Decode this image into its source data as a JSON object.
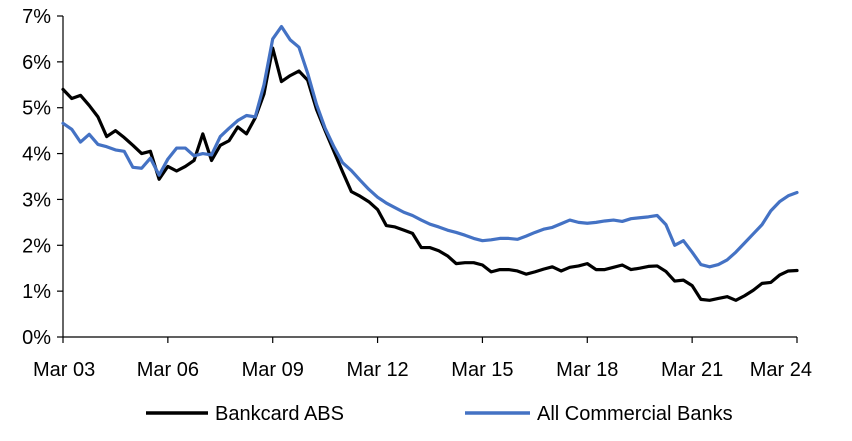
{
  "chart_data": {
    "type": "line",
    "title": "",
    "xlabel": "",
    "ylabel": "",
    "ylim": [
      0,
      7
    ],
    "xlim": [
      2003.17,
      2024.17
    ],
    "y_ticks": [
      {
        "value": 0,
        "label": "0%"
      },
      {
        "value": 1,
        "label": "1%"
      },
      {
        "value": 2,
        "label": "2%"
      },
      {
        "value": 3,
        "label": "3%"
      },
      {
        "value": 4,
        "label": "4%"
      },
      {
        "value": 5,
        "label": "5%"
      },
      {
        "value": 6,
        "label": "6%"
      },
      {
        "value": 7,
        "label": "7%"
      }
    ],
    "x_ticks": [
      {
        "value": 2003.17,
        "label": "Mar 03"
      },
      {
        "value": 2006.17,
        "label": "Mar 06"
      },
      {
        "value": 2009.17,
        "label": "Mar 09"
      },
      {
        "value": 2012.17,
        "label": "Mar 12"
      },
      {
        "value": 2015.17,
        "label": "Mar 15"
      },
      {
        "value": 2018.17,
        "label": "Mar 18"
      },
      {
        "value": 2021.17,
        "label": "Mar 21"
      },
      {
        "value": 2024.17,
        "label": "Mar 24"
      }
    ],
    "grid": false,
    "legend_position": "bottom",
    "series": [
      {
        "name": "Bankcard ABS",
        "color": "#000000",
        "points": [
          [
            2003.17,
            5.4
          ],
          [
            2003.42,
            5.2
          ],
          [
            2003.67,
            5.27
          ],
          [
            2003.92,
            5.05
          ],
          [
            2004.17,
            4.8
          ],
          [
            2004.42,
            4.37
          ],
          [
            2004.67,
            4.5
          ],
          [
            2004.92,
            4.35
          ],
          [
            2005.17,
            4.18
          ],
          [
            2005.42,
            4.0
          ],
          [
            2005.67,
            4.05
          ],
          [
            2005.92,
            3.44
          ],
          [
            2006.17,
            3.72
          ],
          [
            2006.42,
            3.62
          ],
          [
            2006.67,
            3.72
          ],
          [
            2006.92,
            3.85
          ],
          [
            2007.17,
            4.43
          ],
          [
            2007.42,
            3.85
          ],
          [
            2007.67,
            4.18
          ],
          [
            2007.92,
            4.28
          ],
          [
            2008.17,
            4.58
          ],
          [
            2008.42,
            4.43
          ],
          [
            2008.67,
            4.78
          ],
          [
            2008.92,
            5.3
          ],
          [
            2009.17,
            6.3
          ],
          [
            2009.42,
            5.57
          ],
          [
            2009.67,
            5.7
          ],
          [
            2009.92,
            5.8
          ],
          [
            2010.17,
            5.6
          ],
          [
            2010.42,
            4.97
          ],
          [
            2010.67,
            4.5
          ],
          [
            2010.92,
            4.05
          ],
          [
            2011.17,
            3.6
          ],
          [
            2011.42,
            3.17
          ],
          [
            2011.67,
            3.07
          ],
          [
            2011.92,
            2.95
          ],
          [
            2012.17,
            2.78
          ],
          [
            2012.42,
            2.43
          ],
          [
            2012.67,
            2.4
          ],
          [
            2012.92,
            2.33
          ],
          [
            2013.17,
            2.26
          ],
          [
            2013.42,
            1.95
          ],
          [
            2013.67,
            1.95
          ],
          [
            2013.92,
            1.88
          ],
          [
            2014.17,
            1.77
          ],
          [
            2014.42,
            1.6
          ],
          [
            2014.67,
            1.62
          ],
          [
            2014.92,
            1.62
          ],
          [
            2015.17,
            1.57
          ],
          [
            2015.42,
            1.42
          ],
          [
            2015.67,
            1.47
          ],
          [
            2015.92,
            1.47
          ],
          [
            2016.17,
            1.44
          ],
          [
            2016.42,
            1.37
          ],
          [
            2016.67,
            1.42
          ],
          [
            2016.92,
            1.48
          ],
          [
            2017.17,
            1.53
          ],
          [
            2017.42,
            1.44
          ],
          [
            2017.67,
            1.52
          ],
          [
            2017.92,
            1.55
          ],
          [
            2018.17,
            1.6
          ],
          [
            2018.42,
            1.47
          ],
          [
            2018.67,
            1.47
          ],
          [
            2018.92,
            1.52
          ],
          [
            2019.17,
            1.57
          ],
          [
            2019.42,
            1.47
          ],
          [
            2019.67,
            1.5
          ],
          [
            2019.92,
            1.54
          ],
          [
            2020.17,
            1.55
          ],
          [
            2020.42,
            1.43
          ],
          [
            2020.67,
            1.22
          ],
          [
            2020.92,
            1.24
          ],
          [
            2021.17,
            1.12
          ],
          [
            2021.42,
            0.82
          ],
          [
            2021.67,
            0.8
          ],
          [
            2021.92,
            0.84
          ],
          [
            2022.17,
            0.88
          ],
          [
            2022.42,
            0.8
          ],
          [
            2022.67,
            0.9
          ],
          [
            2022.92,
            1.02
          ],
          [
            2023.17,
            1.17
          ],
          [
            2023.42,
            1.19
          ],
          [
            2023.67,
            1.35
          ],
          [
            2023.92,
            1.44
          ],
          [
            2024.17,
            1.45
          ]
        ]
      },
      {
        "name": "All Commercial Banks",
        "color": "#4472c4",
        "points": [
          [
            2003.17,
            4.66
          ],
          [
            2003.42,
            4.53
          ],
          [
            2003.67,
            4.25
          ],
          [
            2003.92,
            4.42
          ],
          [
            2004.17,
            4.2
          ],
          [
            2004.42,
            4.15
          ],
          [
            2004.67,
            4.08
          ],
          [
            2004.92,
            4.05
          ],
          [
            2005.17,
            3.7
          ],
          [
            2005.42,
            3.68
          ],
          [
            2005.67,
            3.9
          ],
          [
            2005.92,
            3.53
          ],
          [
            2006.17,
            3.88
          ],
          [
            2006.42,
            4.12
          ],
          [
            2006.67,
            4.12
          ],
          [
            2006.92,
            3.95
          ],
          [
            2007.17,
            4.0
          ],
          [
            2007.42,
            3.97
          ],
          [
            2007.67,
            4.37
          ],
          [
            2007.92,
            4.55
          ],
          [
            2008.17,
            4.72
          ],
          [
            2008.42,
            4.83
          ],
          [
            2008.67,
            4.8
          ],
          [
            2008.92,
            5.5
          ],
          [
            2009.17,
            6.5
          ],
          [
            2009.42,
            6.77
          ],
          [
            2009.67,
            6.48
          ],
          [
            2009.92,
            6.32
          ],
          [
            2010.17,
            5.75
          ],
          [
            2010.42,
            5.08
          ],
          [
            2010.67,
            4.55
          ],
          [
            2010.92,
            4.15
          ],
          [
            2011.17,
            3.8
          ],
          [
            2011.42,
            3.63
          ],
          [
            2011.67,
            3.42
          ],
          [
            2011.92,
            3.22
          ],
          [
            2012.17,
            3.05
          ],
          [
            2012.42,
            2.92
          ],
          [
            2012.67,
            2.82
          ],
          [
            2012.92,
            2.72
          ],
          [
            2013.17,
            2.65
          ],
          [
            2013.42,
            2.55
          ],
          [
            2013.67,
            2.46
          ],
          [
            2013.92,
            2.4
          ],
          [
            2014.17,
            2.33
          ],
          [
            2014.42,
            2.28
          ],
          [
            2014.67,
            2.22
          ],
          [
            2014.92,
            2.15
          ],
          [
            2015.17,
            2.1
          ],
          [
            2015.42,
            2.12
          ],
          [
            2015.67,
            2.15
          ],
          [
            2015.92,
            2.15
          ],
          [
            2016.17,
            2.13
          ],
          [
            2016.42,
            2.2
          ],
          [
            2016.67,
            2.28
          ],
          [
            2016.92,
            2.35
          ],
          [
            2017.17,
            2.39
          ],
          [
            2017.42,
            2.47
          ],
          [
            2017.67,
            2.55
          ],
          [
            2017.92,
            2.5
          ],
          [
            2018.17,
            2.48
          ],
          [
            2018.42,
            2.5
          ],
          [
            2018.67,
            2.53
          ],
          [
            2018.92,
            2.55
          ],
          [
            2019.17,
            2.52
          ],
          [
            2019.42,
            2.58
          ],
          [
            2019.67,
            2.6
          ],
          [
            2019.92,
            2.62
          ],
          [
            2020.17,
            2.65
          ],
          [
            2020.42,
            2.45
          ],
          [
            2020.67,
            2.0
          ],
          [
            2020.92,
            2.1
          ],
          [
            2021.17,
            1.85
          ],
          [
            2021.42,
            1.58
          ],
          [
            2021.67,
            1.53
          ],
          [
            2021.92,
            1.58
          ],
          [
            2022.17,
            1.68
          ],
          [
            2022.42,
            1.85
          ],
          [
            2022.67,
            2.05
          ],
          [
            2022.92,
            2.25
          ],
          [
            2023.17,
            2.45
          ],
          [
            2023.42,
            2.75
          ],
          [
            2023.67,
            2.95
          ],
          [
            2023.92,
            3.08
          ],
          [
            2024.17,
            3.15
          ]
        ]
      }
    ]
  }
}
